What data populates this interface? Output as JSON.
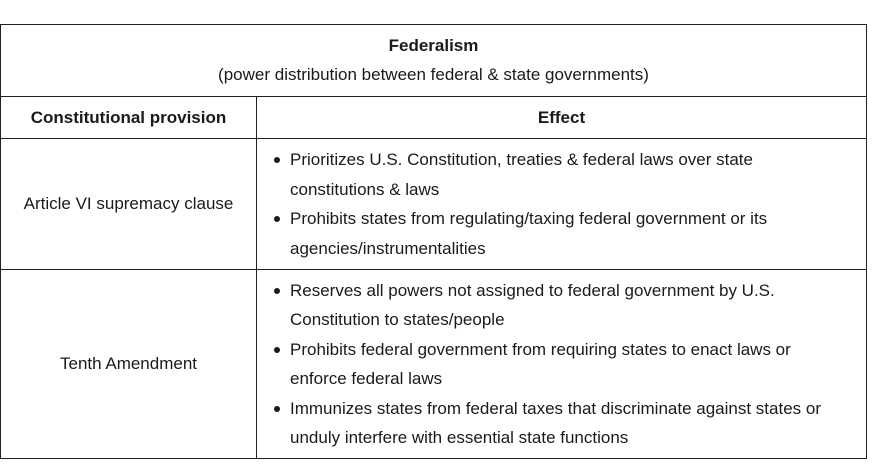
{
  "table": {
    "title": "Federalism",
    "subtitle": "(power distribution between federal & state governments)",
    "headers": {
      "provision": "Constitutional provision",
      "effect": "Effect"
    },
    "rows": [
      {
        "provision": "Article VI supremacy clause",
        "effects": [
          "Prioritizes U.S. Constitution, treaties & federal laws over state constitutions & laws",
          "Prohibits states from regulating/taxing federal government or its agencies/instrumentalities"
        ]
      },
      {
        "provision": "Tenth Amendment",
        "effects": [
          "Reserves all powers not assigned to federal government by U.S. Constitution to states/people",
          "Prohibits federal government from requiring states to enact laws or enforce federal laws",
          "Immunizes states from federal taxes that discriminate against states or unduly interfere with essential state functions"
        ]
      }
    ]
  }
}
